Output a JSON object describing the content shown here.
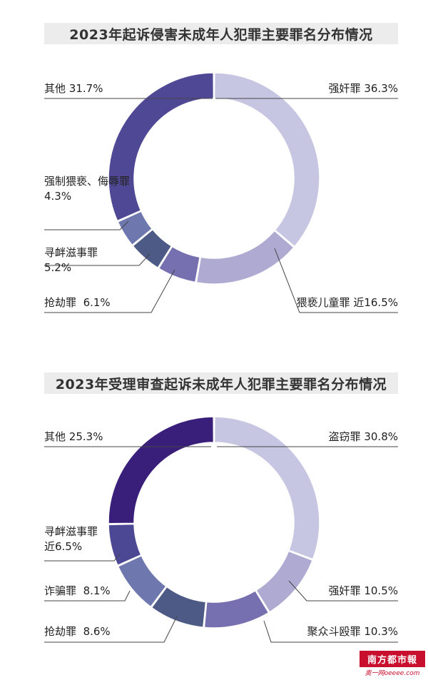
{
  "chart_data": [
    {
      "type": "pie",
      "title": "2023年起诉侵害未成年人犯罪主要罪名分布情况",
      "slices": [
        {
          "label": "强奸罪",
          "value": 36.3,
          "display": "36.3%",
          "color": "#c7c6e2"
        },
        {
          "label": "猥亵儿童罪",
          "value": 16.5,
          "display": "近16.5%",
          "color": "#aeaad2"
        },
        {
          "label": "抢劫罪",
          "value": 6.1,
          "display": "6.1%",
          "color": "#7670b0"
        },
        {
          "label": "寻衅滋事罪",
          "value": 5.2,
          "display": "5.2%",
          "color": "#4c5a85"
        },
        {
          "label": "强制猥亵、侮辱罪",
          "value": 4.3,
          "display": "4.3%",
          "color": "#6e78ae"
        },
        {
          "label": "其他",
          "value": 31.7,
          "display": "31.7%",
          "color": "#4f4894"
        }
      ]
    },
    {
      "type": "pie",
      "title": "2023年受理审查起诉未成年人犯罪主要罪名分布情况",
      "slices": [
        {
          "label": "盗窃罪",
          "value": 30.8,
          "display": "30.8%",
          "color": "#c7c6e2"
        },
        {
          "label": "强奸罪",
          "value": 10.5,
          "display": "10.5%",
          "color": "#aeaad2"
        },
        {
          "label": "聚众斗殴罪",
          "value": 10.3,
          "display": "10.3%",
          "color": "#7670b0"
        },
        {
          "label": "抢劫罪",
          "value": 8.6,
          "display": "8.6%",
          "color": "#4c5a85"
        },
        {
          "label": "诈骗罪",
          "value": 8.1,
          "display": "8.1%",
          "color": "#6e78ae"
        },
        {
          "label": "寻衅滋事罪",
          "value": 6.5,
          "display": "近6.5%",
          "color": "#4c4894"
        },
        {
          "label": "其他",
          "value": 25.3,
          "display": "25.3%",
          "color": "#3a1f7a"
        }
      ]
    }
  ],
  "watermark": {
    "top": "南方都市報",
    "bottom": "奥一网oeeee.com"
  }
}
